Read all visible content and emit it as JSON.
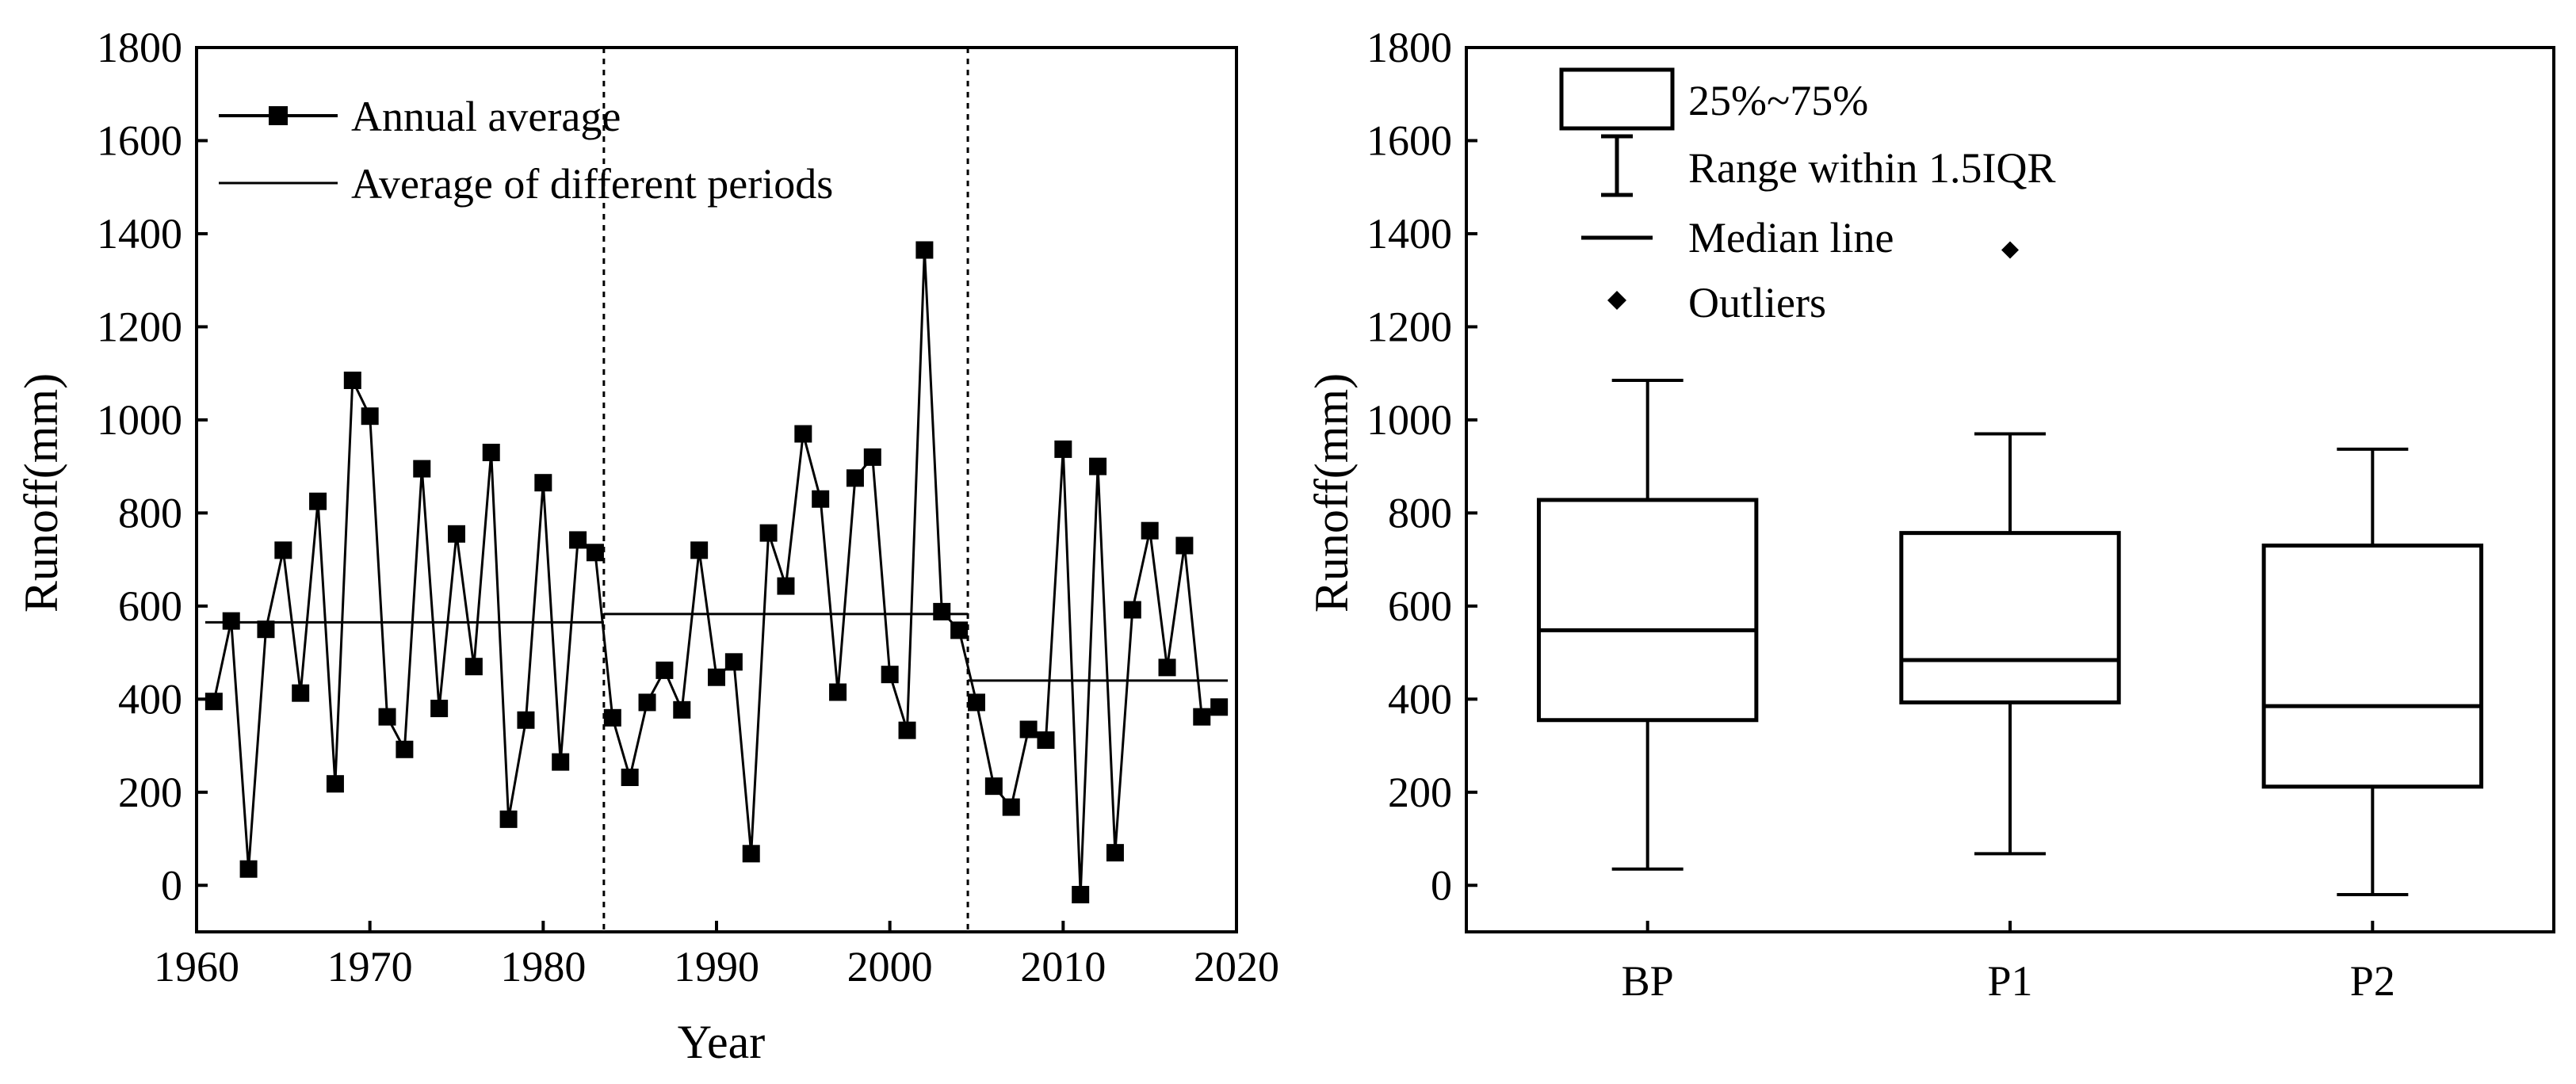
{
  "chart_data": [
    {
      "type": "line",
      "xlabel": "Year",
      "ylabel": "Runoff(mm)",
      "xlim": [
        1960,
        2020
      ],
      "ylim": [
        -100,
        1800
      ],
      "xticks": [
        "1960",
        "1970",
        "1980",
        "1990",
        "2000",
        "2010",
        "2020"
      ],
      "yticks": [
        "0",
        "200",
        "400",
        "600",
        "800",
        "1000",
        "1200",
        "1400",
        "1600",
        "1800"
      ],
      "legend": [
        {
          "label": "Annual average",
          "style": "line-square"
        },
        {
          "label": "Average of different periods",
          "style": "line"
        }
      ],
      "series": [
        {
          "name": "Annual average",
          "x": [
            1961,
            1962,
            1963,
            1964,
            1965,
            1966,
            1967,
            1968,
            1969,
            1970,
            1971,
            1972,
            1973,
            1974,
            1975,
            1976,
            1977,
            1978,
            1979,
            1980,
            1981,
            1982,
            1983,
            1984,
            1985,
            1986,
            1987,
            1988,
            1989,
            1990,
            1991,
            1992,
            1993,
            1994,
            1995,
            1996,
            1997,
            1998,
            1999,
            2000,
            2001,
            2002,
            2003,
            2004,
            2005,
            2006,
            2007,
            2008,
            2009,
            2010,
            2011,
            2012,
            2013,
            2014,
            2015,
            2016,
            2017,
            2018,
            2019
          ],
          "values": [
            395,
            568,
            35,
            550,
            720,
            413,
            825,
            218,
            1085,
            1008,
            362,
            292,
            895,
            380,
            755,
            470,
            930,
            142,
            355,
            865,
            265,
            742,
            715,
            360,
            232,
            393,
            462,
            377,
            720,
            447,
            480,
            68,
            757,
            643,
            970,
            830,
            415,
            875,
            920,
            453,
            333,
            1365,
            588,
            548,
            393,
            213,
            168,
            335,
            312,
            937,
            -20,
            900,
            70,
            592,
            762,
            468,
            730,
            362,
            383
          ]
        }
      ],
      "period_averages": [
        {
          "name": "BP",
          "from": 1961,
          "to": 1983,
          "value": 565
        },
        {
          "name": "P1",
          "from": 1984,
          "to": 2004,
          "value": 583
        },
        {
          "name": "P2",
          "from": 2005,
          "to": 2019,
          "value": 440
        }
      ],
      "breakpoints": [
        1983.5,
        2004.5
      ]
    },
    {
      "type": "box",
      "ylabel": "Runoff(mm)",
      "ylim": [
        -100,
        1800
      ],
      "yticks": [
        "0",
        "200",
        "400",
        "600",
        "800",
        "1000",
        "1200",
        "1400",
        "1600",
        "1800"
      ],
      "categories": [
        "BP",
        "P1",
        "P2"
      ],
      "boxes": [
        {
          "name": "BP",
          "whisker_low": 35,
          "q1": 355,
          "median": 548,
          "q3": 828,
          "whisker_high": 1085,
          "outliers": []
        },
        {
          "name": "P1",
          "whisker_low": 68,
          "q1": 393,
          "median": 484,
          "q3": 757,
          "whisker_high": 970,
          "outliers": [
            1365
          ]
        },
        {
          "name": "P2",
          "whisker_low": -20,
          "q1": 212,
          "median": 385,
          "q3": 730,
          "whisker_high": 937,
          "outliers": []
        }
      ],
      "legend": [
        {
          "label": "25%~75%",
          "style": "box"
        },
        {
          "label": "Range within 1.5IQR",
          "style": "whisker"
        },
        {
          "label": "Median line",
          "style": "line"
        },
        {
          "label": "Outliers",
          "style": "diamond"
        }
      ]
    }
  ]
}
